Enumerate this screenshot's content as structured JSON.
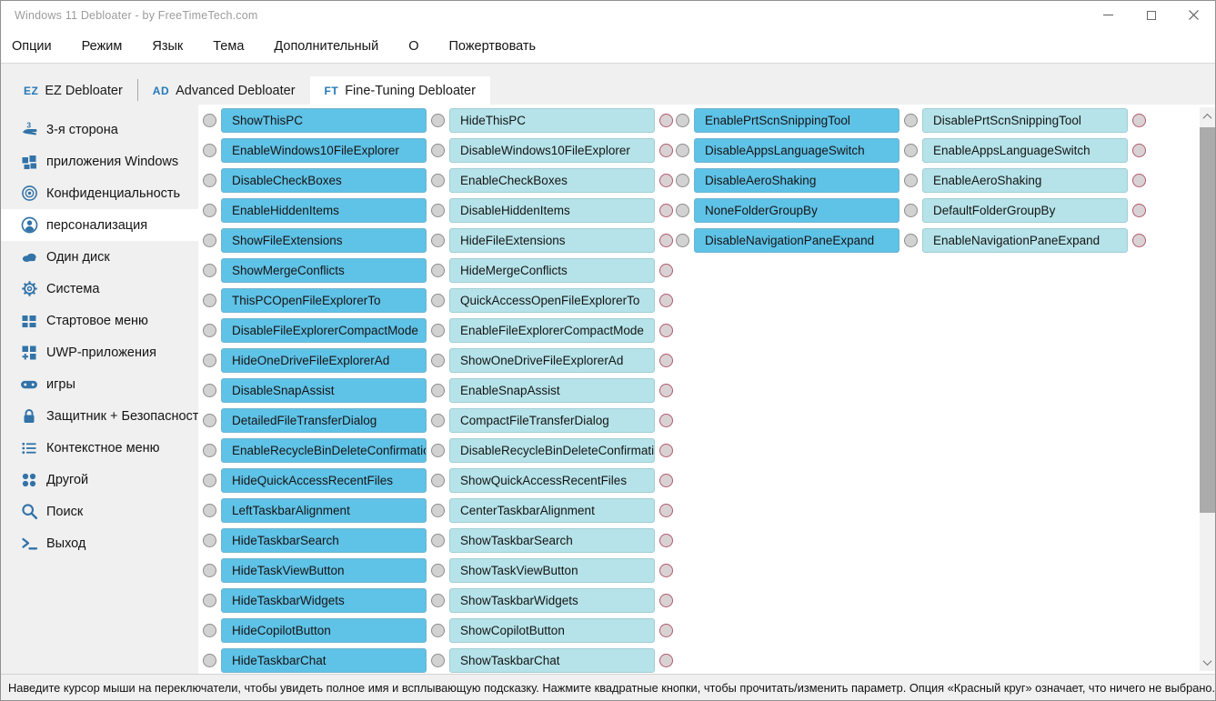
{
  "window": {
    "title": "Windows 11 Debloater - by FreeTimeTech.com"
  },
  "menu": {
    "items": [
      {
        "id": "options",
        "label": "Опции"
      },
      {
        "id": "mode",
        "label": "Режим"
      },
      {
        "id": "language",
        "label": "Язык"
      },
      {
        "id": "theme",
        "label": "Тема"
      },
      {
        "id": "additional",
        "label": "Дополнительный"
      },
      {
        "id": "about",
        "label": "О"
      },
      {
        "id": "donate",
        "label": "Пожертвовать"
      }
    ]
  },
  "tabs": [
    {
      "id": "ez-debloater",
      "badge": "EZ",
      "label": "EZ Debloater",
      "active": false
    },
    {
      "id": "advanced-debloater",
      "badge": "AD",
      "label": "Advanced Debloater",
      "active": false
    },
    {
      "id": "fine-tuning-debloater",
      "badge": "FT",
      "label": "Fine-Tuning Debloater",
      "active": true
    }
  ],
  "sidebar": {
    "items": [
      {
        "id": "third-party",
        "icon": "hand-third-party-icon",
        "label": "3-я сторона",
        "selected": false
      },
      {
        "id": "windows-apps",
        "icon": "windows-apps-icon",
        "label": "приложения Windows",
        "selected": false
      },
      {
        "id": "privacy",
        "icon": "privacy-icon",
        "label": "Конфиденциальность",
        "selected": false
      },
      {
        "id": "personalization",
        "icon": "person-icon",
        "label": "персонализация",
        "selected": true
      },
      {
        "id": "onedrive",
        "icon": "onedrive-cloud-icon",
        "label": "Один диск",
        "selected": false
      },
      {
        "id": "system",
        "icon": "gear-icon",
        "label": "Система",
        "selected": false
      },
      {
        "id": "start-menu",
        "icon": "start-menu-icon",
        "label": "Стартовое меню",
        "selected": false
      },
      {
        "id": "uwp-apps",
        "icon": "uwp-apps-icon",
        "label": "UWP-приложения",
        "selected": false
      },
      {
        "id": "games",
        "icon": "gamepad-icon",
        "label": "игры",
        "selected": false
      },
      {
        "id": "defender-security",
        "icon": "lock-icon",
        "label": "Защитник + Безопасность",
        "selected": false
      },
      {
        "id": "context-menu",
        "icon": "context-menu-list-icon",
        "label": "Контекстное меню",
        "selected": false
      },
      {
        "id": "other",
        "icon": "dots-other-icon",
        "label": "Другой",
        "selected": false
      },
      {
        "id": "search",
        "icon": "search-icon",
        "label": "Поиск",
        "selected": false
      },
      {
        "id": "exit",
        "icon": "exit-icon",
        "label": "Выход",
        "selected": false
      }
    ]
  },
  "content": {
    "groups": [
      {
        "id": "group-1",
        "rows": [
          {
            "left": "ShowThisPC",
            "right": "HideThisPC"
          },
          {
            "left": "EnableWindows10FileExplorer",
            "right": "DisableWindows10FileExplorer"
          },
          {
            "left": "DisableCheckBoxes",
            "right": "EnableCheckBoxes"
          },
          {
            "left": "EnableHiddenItems",
            "right": "DisableHiddenItems"
          },
          {
            "left": "ShowFileExtensions",
            "right": "HideFileExtensions"
          },
          {
            "left": "ShowMergeConflicts",
            "right": "HideMergeConflicts"
          },
          {
            "left": "ThisPCOpenFileExplorerTo",
            "right": "QuickAccessOpenFileExplorerTo"
          },
          {
            "left": "DisableFileExplorerCompactMode",
            "right": "EnableFileExplorerCompactMode"
          },
          {
            "left": "HideOneDriveFileExplorerAd",
            "right": "ShowOneDriveFileExplorerAd"
          },
          {
            "left": "DisableSnapAssist",
            "right": "EnableSnapAssist"
          },
          {
            "left": "DetailedFileTransferDialog",
            "right": "CompactFileTransferDialog"
          },
          {
            "left": "EnableRecycleBinDeleteConfirmation",
            "right": "DisableRecycleBinDeleteConfirmation"
          },
          {
            "left": "HideQuickAccessRecentFiles",
            "right": "ShowQuickAccessRecentFiles"
          },
          {
            "left": "LeftTaskbarAlignment",
            "right": "CenterTaskbarAlignment"
          },
          {
            "left": "HideTaskbarSearch",
            "right": "ShowTaskbarSearch"
          },
          {
            "left": "HideTaskViewButton",
            "right": "ShowTaskViewButton"
          },
          {
            "left": "HideTaskbarWidgets",
            "right": "ShowTaskbarWidgets"
          },
          {
            "left": "HideCopilotButton",
            "right": "ShowCopilotButton"
          },
          {
            "left": "HideTaskbarChat",
            "right": "ShowTaskbarChat"
          }
        ]
      },
      {
        "id": "group-2",
        "rows": [
          {
            "left": "EnablePrtScnSnippingTool",
            "right": "DisablePrtScnSnippingTool"
          },
          {
            "left": "DisableAppsLanguageSwitch",
            "right": "EnableAppsLanguageSwitch"
          },
          {
            "left": "DisableAeroShaking",
            "right": "EnableAeroShaking"
          },
          {
            "left": "NoneFolderGroupBy",
            "right": "DefaultFolderGroupBy"
          },
          {
            "left": "DisableNavigationPaneExpand",
            "right": "EnableNavigationPaneExpand"
          }
        ]
      }
    ]
  },
  "statusbar": {
    "text": "Наведите курсор мыши на переключатели, чтобы увидеть полное имя и всплывающую подсказку. Нажмите квадратные кнопки, чтобы прочитать/изменить параметр. Опция «Красный круг» означает, что ничего не выбрано."
  },
  "colors": {
    "icon_blue": "#3273a8",
    "tab_badge_blue": "#2579b8",
    "button_primary": "#5fc2e7",
    "button_secondary": "#b5e3e9",
    "red_circle_border": "#b25b6b",
    "sidebar_bg": "#f0f0f0"
  }
}
